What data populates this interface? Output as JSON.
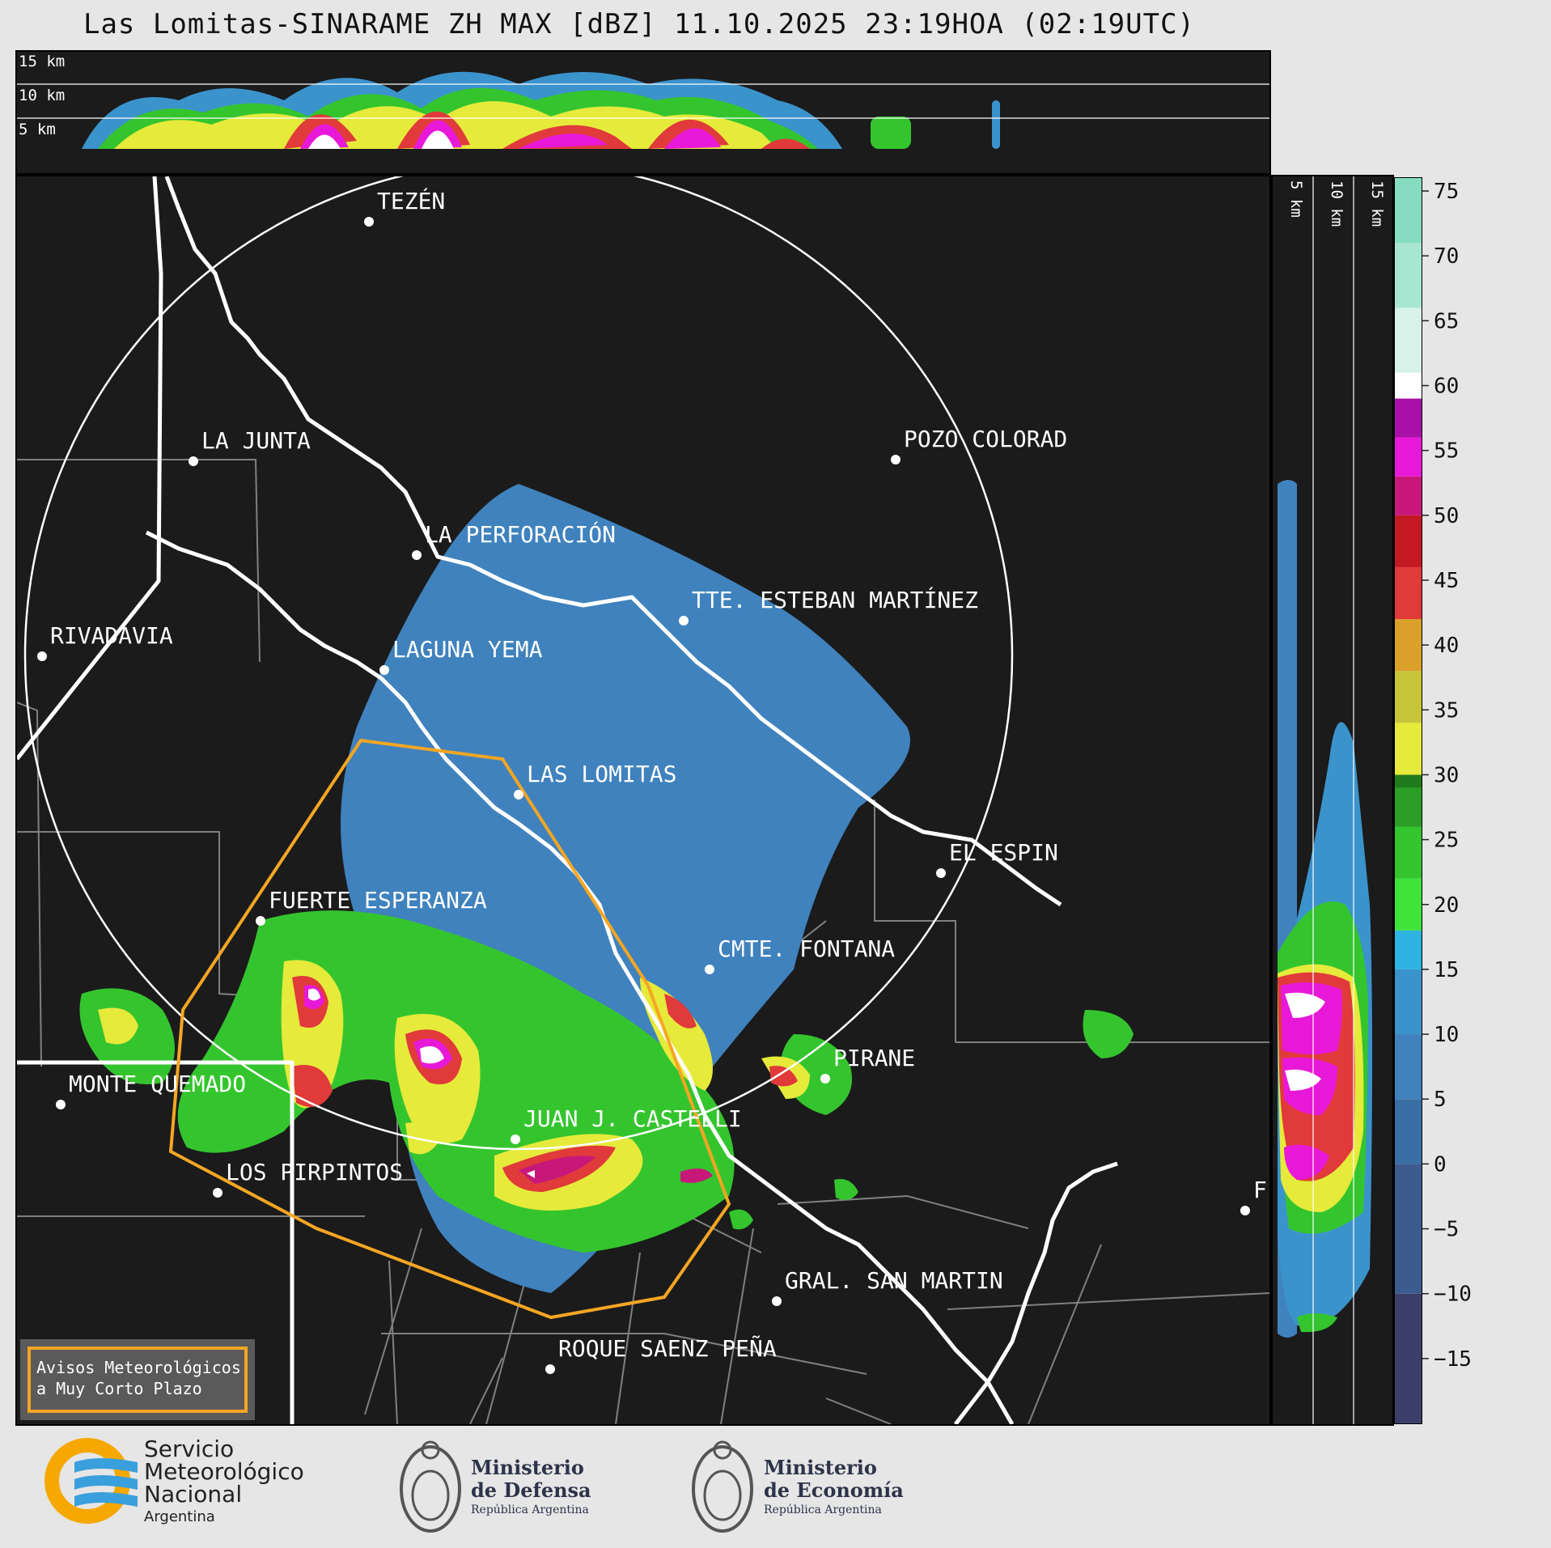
{
  "title": "Las Lomitas-SINARAME ZH MAX [dBZ] 11.10.2025 23:19HOA (02:19UTC)",
  "top_panel": {
    "height_labels": [
      "15 km",
      "10 km",
      "5 km"
    ]
  },
  "side_panel": {
    "height_labels": [
      "5 km",
      "10 km",
      "15 km"
    ]
  },
  "colorbar": {
    "unit": "dBZ",
    "ticks": [
      "75",
      "70",
      "65",
      "60",
      "55",
      "50",
      "45",
      "40",
      "35",
      "30",
      "25",
      "20",
      "15",
      "10",
      "5",
      "0",
      "−5",
      "−10",
      "−15"
    ],
    "stops": [
      {
        "from": -20,
        "color": "#3b3f6a"
      },
      {
        "from": -10,
        "color": "#3b5c8c"
      },
      {
        "from": 0,
        "color": "#3a6fa6"
      },
      {
        "from": 5,
        "color": "#3f82bd"
      },
      {
        "from": 10,
        "color": "#3b93cc"
      },
      {
        "from": 15,
        "color": "#2fb3e0"
      },
      {
        "from": 18,
        "color": "#3fe33a"
      },
      {
        "from": 22,
        "color": "#34c52e"
      },
      {
        "from": 26,
        "color": "#2a9e25"
      },
      {
        "from": 29,
        "color": "#1f7c1c"
      },
      {
        "from": 30,
        "color": "#e6ea3a"
      },
      {
        "from": 34,
        "color": "#c9c53a"
      },
      {
        "from": 38,
        "color": "#d9a02a"
      },
      {
        "from": 42,
        "color": "#e03a3a"
      },
      {
        "from": 46,
        "color": "#c41822"
      },
      {
        "from": 50,
        "color": "#c7187a"
      },
      {
        "from": 53,
        "color": "#e818d8"
      },
      {
        "from": 56,
        "color": "#a810a8"
      },
      {
        "from": 59,
        "color": "#ffffff"
      },
      {
        "from": 61,
        "color": "#d6f2e9"
      },
      {
        "from": 66,
        "color": "#a8e6d2"
      },
      {
        "from": 71,
        "color": "#86dcc0"
      }
    ]
  },
  "map": {
    "radar_site": "LAS LOMITAS",
    "cities": [
      {
        "name": "TEZÉN"
      },
      {
        "name": "LA JUNTA"
      },
      {
        "name": "POZO COLORAD"
      },
      {
        "name": "LA PERFORACIÓN"
      },
      {
        "name": "TTE. ESTEBAN MARTÍNEZ"
      },
      {
        "name": "RIVADAVIA"
      },
      {
        "name": "LAGUNA YEMA"
      },
      {
        "name": "LAS LOMITAS"
      },
      {
        "name": "EL ESPIN"
      },
      {
        "name": "FUERTE ESPERANZA"
      },
      {
        "name": "CMTE. FONTANA"
      },
      {
        "name": "PIRANE"
      },
      {
        "name": "MONTE QUEMADO"
      },
      {
        "name": "JUAN J. CASTELLI"
      },
      {
        "name": "LOS PIRPINTOS"
      },
      {
        "name": "GRAL. SAN MARTIN"
      },
      {
        "name": "ROQUE SAENZ PEÑA"
      },
      {
        "name": "F"
      }
    ],
    "warning_legend": [
      "Avisos Meteorológicos",
      "a Muy Corto Plazo"
    ]
  },
  "colors": {
    "background": "#1b1b1b",
    "warning_polygon": "#f5a623",
    "borders": "#ffffff",
    "departments": "#808080"
  },
  "footer": {
    "smn": [
      "Servicio",
      "Meteorológico",
      "Nacional",
      "Argentina"
    ],
    "defensa": [
      "Ministerio",
      "de Defensa",
      "República Argentina"
    ],
    "economia": [
      "Ministerio",
      "de Economía",
      "República Argentina"
    ]
  }
}
